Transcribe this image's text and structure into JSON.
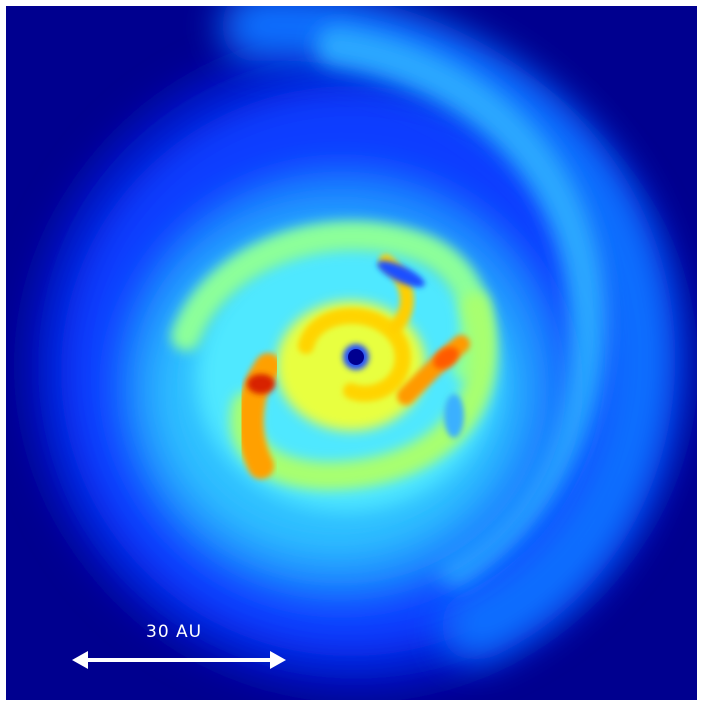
{
  "scale_bar": {
    "label": "30 AU"
  },
  "colors": {
    "background": "#00008f",
    "outer_disk": "#0a3cff",
    "mid_disk": "#1e9cff",
    "inner_disk": "#4ae6ff",
    "arm": "#c6ff4a",
    "yellow": "#ffe600",
    "orange": "#ff8c00",
    "red": "#d81800",
    "center": "#000080"
  }
}
